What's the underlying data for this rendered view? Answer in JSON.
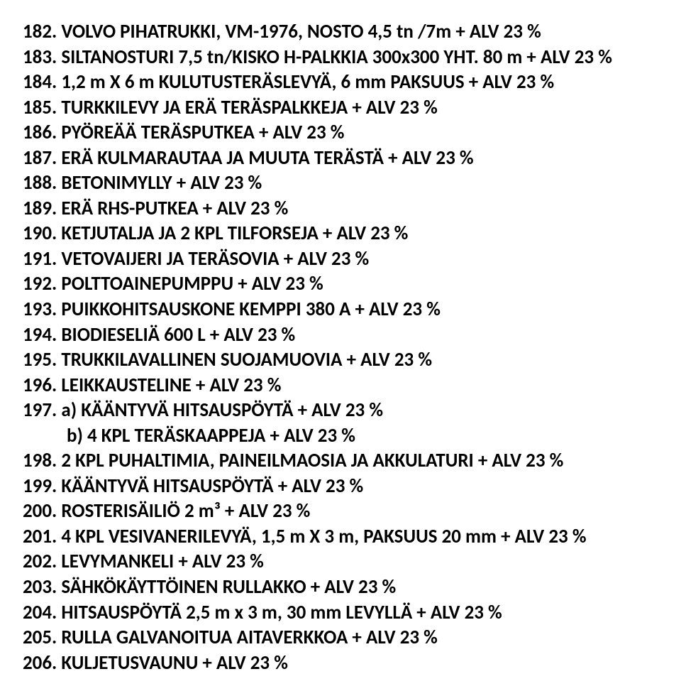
{
  "items": [
    {
      "num": "182.",
      "text": "VOLVO PIHATRUKKI, VM-1976, NOSTO 4,5 tn /7m + ALV 23 %"
    },
    {
      "num": "183.",
      "text": "SILTANOSTURI 7,5 tn/KISKO H-PALKKIA 300x300 YHT. 80 m + ALV 23 %"
    },
    {
      "num": "184.",
      "text": "1,2 m X 6 m KULUTUSTERÄSLEVYÄ, 6 mm PAKSUUS + ALV 23 %"
    },
    {
      "num": "185.",
      "text": "TURKKILEVY JA ERÄ TERÄSPALKKEJA + ALV 23 %"
    },
    {
      "num": "186.",
      "text": "PYÖREÄÄ TERÄSPUTKEA + ALV 23 %"
    },
    {
      "num": "187.",
      "text": "ERÄ KULMARAUTAA JA MUUTA TERÄSTÄ + ALV 23 %"
    },
    {
      "num": "188.",
      "text": "BETONIMYLLY + ALV 23 %"
    },
    {
      "num": "189.",
      "text": "ERÄ RHS-PUTKEA + ALV 23 %"
    },
    {
      "num": "190.",
      "text": "KETJUTALJA JA 2 KPL TILFORSEJA + ALV 23 %"
    },
    {
      "num": "191.",
      "text": "VETOVAIJERI JA TERÄSOVIA + ALV 23 %"
    },
    {
      "num": "192.",
      "text": "POLTTOAINEPUMPPU + ALV 23 %"
    },
    {
      "num": "193.",
      "text": "PUIKKOHITSAUSKONE KEMPPI 380 A + ALV 23 %"
    },
    {
      "num": "194.",
      "text": "BIODIESELIÄ 600 L + ALV 23 %"
    },
    {
      "num": "195.",
      "text": "TRUKKILAVALLINEN SUOJAMUOVIA + ALV 23 %"
    },
    {
      "num": "196.",
      "text": "LEIKKAUSTELINE + ALV 23 %"
    },
    {
      "num": "197.",
      "text": "a) KÄÄNTYVÄ HITSAUSPÖYTÄ + ALV 23 %",
      "sub": "b) 4 KPL TERÄSKAAPPEJA + ALV 23 %"
    },
    {
      "num": "198.",
      "text": "2 KPL PUHALTIMIA, PAINEILMAOSIA JA AKKULATURI + ALV 23 %"
    },
    {
      "num": "199.",
      "text": "KÄÄNTYVÄ HITSAUSPÖYTÄ + ALV 23 %"
    },
    {
      "num": "200.",
      "text": "ROSTERISÄILIÖ 2 m³ + ALV 23 %"
    },
    {
      "num": "201.",
      "text": "4 KPL VESIVANERILEVYÄ, 1,5 m X 3 m, PAKSUUS 20 mm + ALV 23 %"
    },
    {
      "num": "202.",
      "text": "LEVYMANKELI + ALV 23 %"
    },
    {
      "num": "203.",
      "text": "SÄHKÖKÄYTTÖINEN RULLAKKO + ALV 23 %"
    },
    {
      "num": "204.",
      "text": "HITSAUSPÖYTÄ 2,5 m x 3 m, 30 mm LEVYLLÄ + ALV 23 %"
    },
    {
      "num": "205.",
      "text": "RULLA GALVANOITUA AITAVERKKOA + ALV 23 %"
    },
    {
      "num": "206.",
      "text": "KULJETUSVAUNU + ALV 23 %"
    }
  ]
}
